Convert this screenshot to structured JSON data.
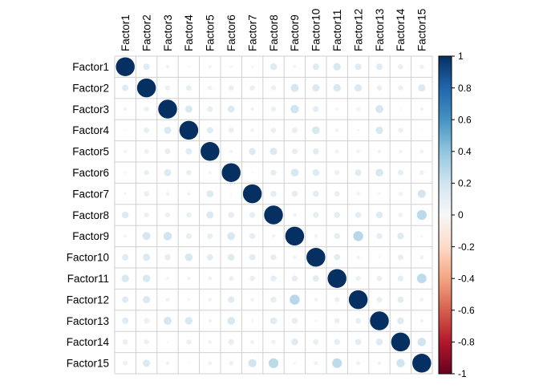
{
  "figure": {
    "background": "#ffffff",
    "grid_color": "#d0d0d0",
    "text_color": "#000000",
    "colorbar_border": "#000000"
  },
  "chart_data": {
    "type": "heatmap",
    "subtype": "correlation-bubble-matrix",
    "title": "",
    "row_labels": [
      "Factor1",
      "Factor2",
      "Factor3",
      "Factor4",
      "Factor5",
      "Factor6",
      "Factor7",
      "Factor8",
      "Factor9",
      "Factor10",
      "Factor11",
      "Factor12",
      "Factor13",
      "Factor14",
      "Factor15"
    ],
    "col_labels": [
      "Factor1",
      "Factor2",
      "Factor3",
      "Factor4",
      "Factor5",
      "Factor6",
      "Factor7",
      "Factor8",
      "Factor9",
      "Factor10",
      "Factor11",
      "Factor12",
      "Factor13",
      "Factor14",
      "Factor15"
    ],
    "value_range": [
      -1,
      1
    ],
    "matrix": [
      [
        1.0,
        0.12,
        0.04,
        0.01,
        0.03,
        0.02,
        0.02,
        0.13,
        0.03,
        0.12,
        0.16,
        0.12,
        0.12,
        0.08,
        0.06
      ],
      [
        0.12,
        1.0,
        0.07,
        0.09,
        0.06,
        0.08,
        0.08,
        0.07,
        0.18,
        0.15,
        0.16,
        0.15,
        0.08,
        0.07,
        0.15
      ],
      [
        0.04,
        0.07,
        1.0,
        0.15,
        0.09,
        0.14,
        0.04,
        0.07,
        0.2,
        0.1,
        0.03,
        0.05,
        0.18,
        0.01,
        0.04
      ],
      [
        0.01,
        0.09,
        0.15,
        1.0,
        0.12,
        0.08,
        0.04,
        0.08,
        0.09,
        0.17,
        0.04,
        0.02,
        0.16,
        0.07,
        0.01
      ],
      [
        0.03,
        0.06,
        0.09,
        0.12,
        1.0,
        0.03,
        0.14,
        0.15,
        0.09,
        0.11,
        0.05,
        0.04,
        0.04,
        0.04,
        0.05
      ],
      [
        0.02,
        0.08,
        0.14,
        0.08,
        0.03,
        1.0,
        0.01,
        0.1,
        0.17,
        0.13,
        0.07,
        0.12,
        0.17,
        0.09,
        0.06
      ],
      [
        0.02,
        0.08,
        0.04,
        0.04,
        0.14,
        0.01,
        1.0,
        0.1,
        0.1,
        0.11,
        0.08,
        0.04,
        0.02,
        0.05,
        0.19
      ],
      [
        0.13,
        0.07,
        0.07,
        0.08,
        0.15,
        0.1,
        0.1,
        1.0,
        0.04,
        0.1,
        0.1,
        0.1,
        0.13,
        0.06,
        0.27
      ],
      [
        0.03,
        0.18,
        0.2,
        0.09,
        0.09,
        0.17,
        0.1,
        0.04,
        1.0,
        0.04,
        0.1,
        0.28,
        0.1,
        0.13,
        0.02
      ],
      [
        0.12,
        0.15,
        0.1,
        0.17,
        0.11,
        0.13,
        0.11,
        0.1,
        0.04,
        1.0,
        0.11,
        0.04,
        0.02,
        0.09,
        0.05
      ],
      [
        0.16,
        0.16,
        0.03,
        0.04,
        0.05,
        0.07,
        0.08,
        0.1,
        0.1,
        0.11,
        1.0,
        0.07,
        0.08,
        0.1,
        0.26
      ],
      [
        0.12,
        0.15,
        0.05,
        0.02,
        0.04,
        0.12,
        0.04,
        0.1,
        0.28,
        0.04,
        0.07,
        1.0,
        0.09,
        0.11,
        0.05
      ],
      [
        0.12,
        0.08,
        0.18,
        0.16,
        0.04,
        0.17,
        0.02,
        0.13,
        0.1,
        0.02,
        0.08,
        0.09,
        1.0,
        0.13,
        0.04
      ],
      [
        0.08,
        0.07,
        0.01,
        0.07,
        0.04,
        0.09,
        0.05,
        0.06,
        0.13,
        0.09,
        0.1,
        0.11,
        0.13,
        1.0,
        0.2
      ],
      [
        0.06,
        0.15,
        0.04,
        0.01,
        0.05,
        0.06,
        0.19,
        0.27,
        0.02,
        0.05,
        0.26,
        0.05,
        0.04,
        0.2,
        1.0
      ]
    ],
    "palette_neg_to_pos": [
      "#67001F",
      "#B2182B",
      "#D6604D",
      "#F4A582",
      "#FDDBC7",
      "#F7F7F7",
      "#D1E5F0",
      "#92C5DE",
      "#4393C3",
      "#2166AC",
      "#053061"
    ],
    "legend_position": "right",
    "grid_on": true,
    "colorbar": {
      "tick_labels": [
        "1",
        "0.8",
        "0.6",
        "0.4",
        "0.2",
        "0",
        "-0.2",
        "-0.4",
        "-0.6",
        "-0.8",
        "-1"
      ],
      "tick_values": [
        1,
        0.8,
        0.6,
        0.4,
        0.2,
        0,
        -0.2,
        -0.4,
        -0.6,
        -0.8,
        -1
      ],
      "top_value": 1,
      "bottom_value": -1
    }
  }
}
